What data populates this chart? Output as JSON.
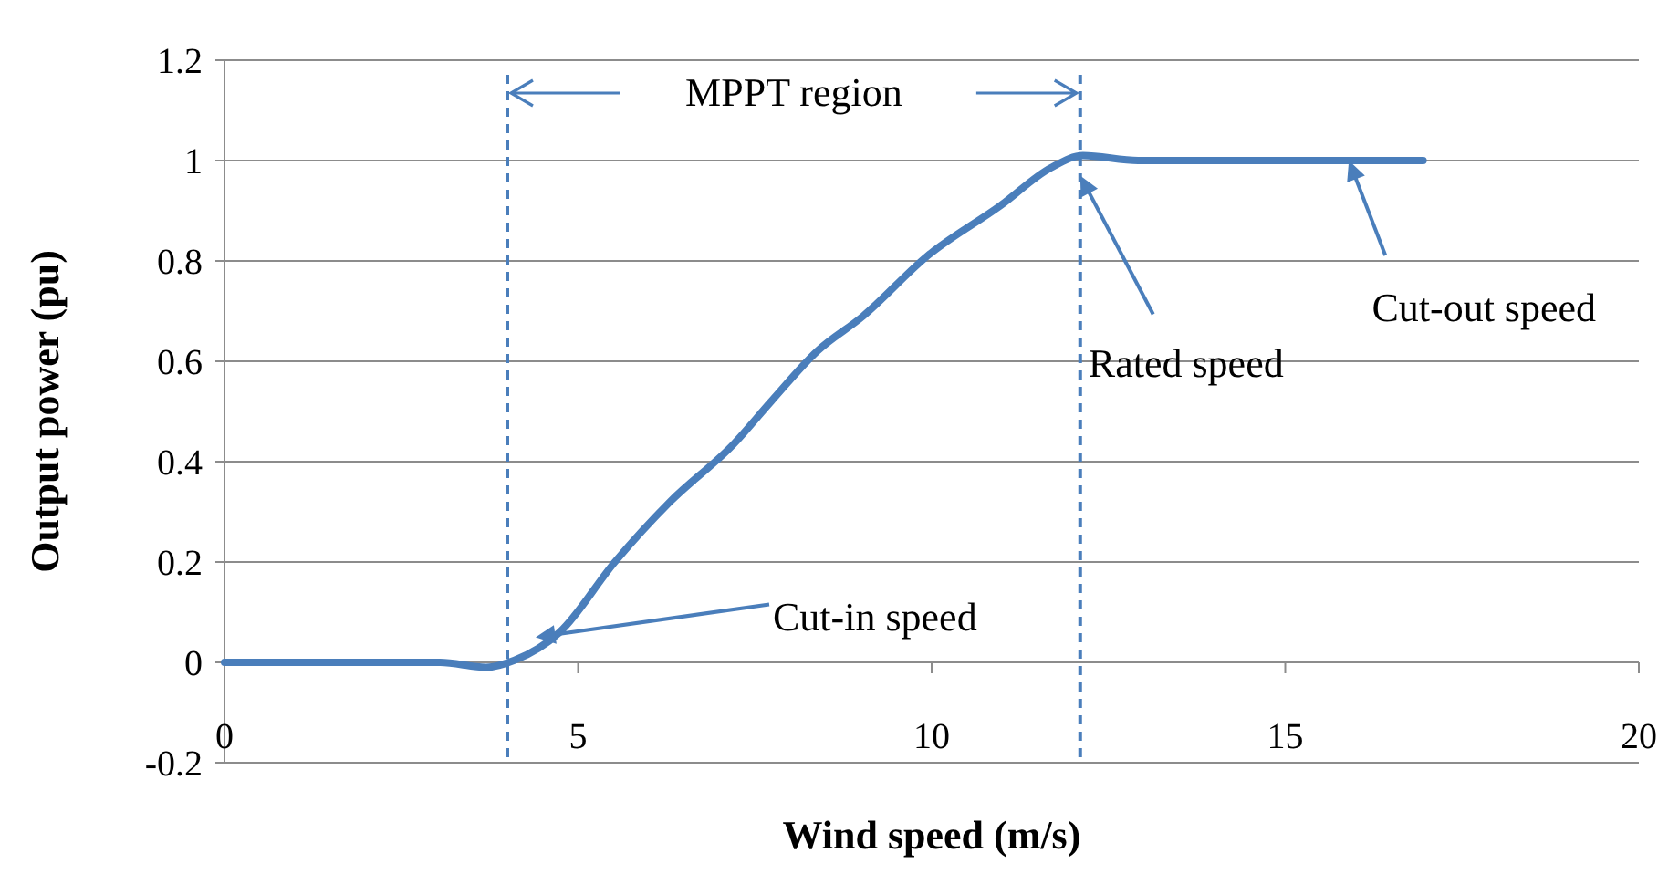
{
  "chart_data": {
    "type": "line",
    "xlabel": "Wind speed (m/s)",
    "ylabel": "Output power (pu)",
    "xlim": [
      0,
      20
    ],
    "xticks": [
      0,
      5,
      10,
      15,
      20
    ],
    "ylim": [
      -0.2,
      1.2
    ],
    "yticks": [
      -0.2,
      0,
      0.2,
      0.4,
      0.6,
      0.8,
      1,
      1.2
    ],
    "grid": "y",
    "marker": "none",
    "line_style": "solid",
    "series": [
      {
        "color": "#4a7ebb",
        "x": [
          0,
          3.05,
          3.7,
          4.1,
          4.74,
          5.52,
          6.3,
          7.2,
          7.73,
          8.38,
          9.03,
          9.94,
          10.97,
          11.69,
          12.14,
          12.92,
          16.95
        ],
        "values": [
          0,
          0,
          -0.01,
          0.004,
          0.06,
          0.2,
          0.32,
          0.435,
          0.52,
          0.62,
          0.69,
          0.81,
          0.91,
          0.986,
          1.01,
          1,
          1
        ]
      }
    ],
    "ref_lines": [
      {
        "axis": "x",
        "value": 4,
        "color": "#4a7ebb",
        "line_style": "dashed"
      },
      {
        "axis": "x",
        "value": 12.1,
        "color": "#4a7ebb",
        "line_style": "dashed"
      }
    ],
    "annotations": [
      "MPPT region",
      {
        "text": "Cut-in speed",
        "x": 4.4,
        "y": 0.05
      },
      {
        "text": "Rated speed",
        "x": 12.1,
        "y": 0.97
      },
      {
        "text": "Cut-out speed",
        "x": 15.9,
        "y": 1
      }
    ]
  }
}
